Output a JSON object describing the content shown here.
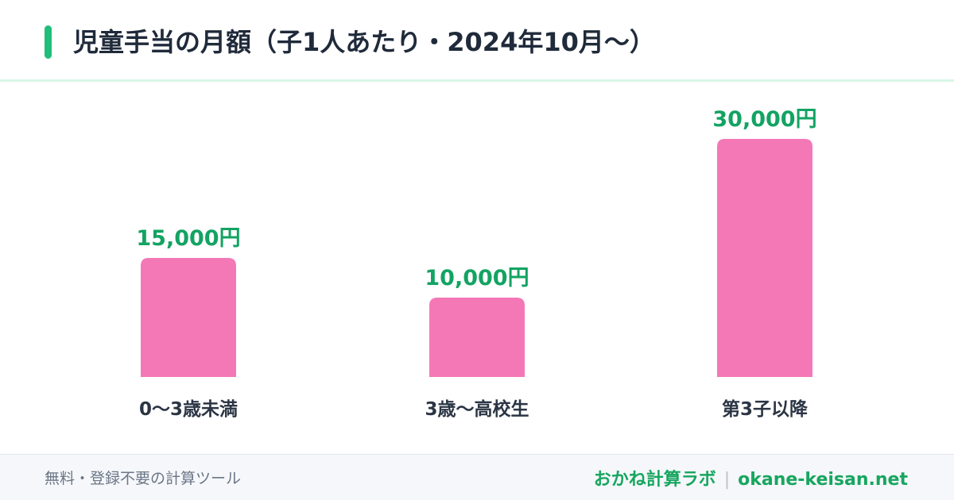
{
  "header": {
    "title": "児童手当の月額（子1人あたり・2024年10月〜）"
  },
  "chart_data": {
    "type": "bar",
    "title": "児童手当の月額（子1人あたり・2024年10月〜）",
    "categories": [
      "0〜3歳未満",
      "3歳〜高校生",
      "第3子以降"
    ],
    "values": [
      15000,
      10000,
      30000
    ],
    "value_labels": [
      "15,000円",
      "10,000円",
      "30,000円"
    ],
    "unit": "円",
    "xlabel": "",
    "ylabel": "",
    "ylim": [
      0,
      30000
    ],
    "grid": false,
    "legend": "none",
    "bar_color": "#f478b6",
    "label_color": "#13a363"
  },
  "footer": {
    "tagline": "無料・登録不要の計算ツール",
    "brand_name": "おかね計算ラボ",
    "separator": "|",
    "domain": "okane-keisan.net"
  },
  "colors": {
    "accent": "#1fbf7a",
    "title_text": "#1f2a3a",
    "brand": "#17a65f"
  }
}
